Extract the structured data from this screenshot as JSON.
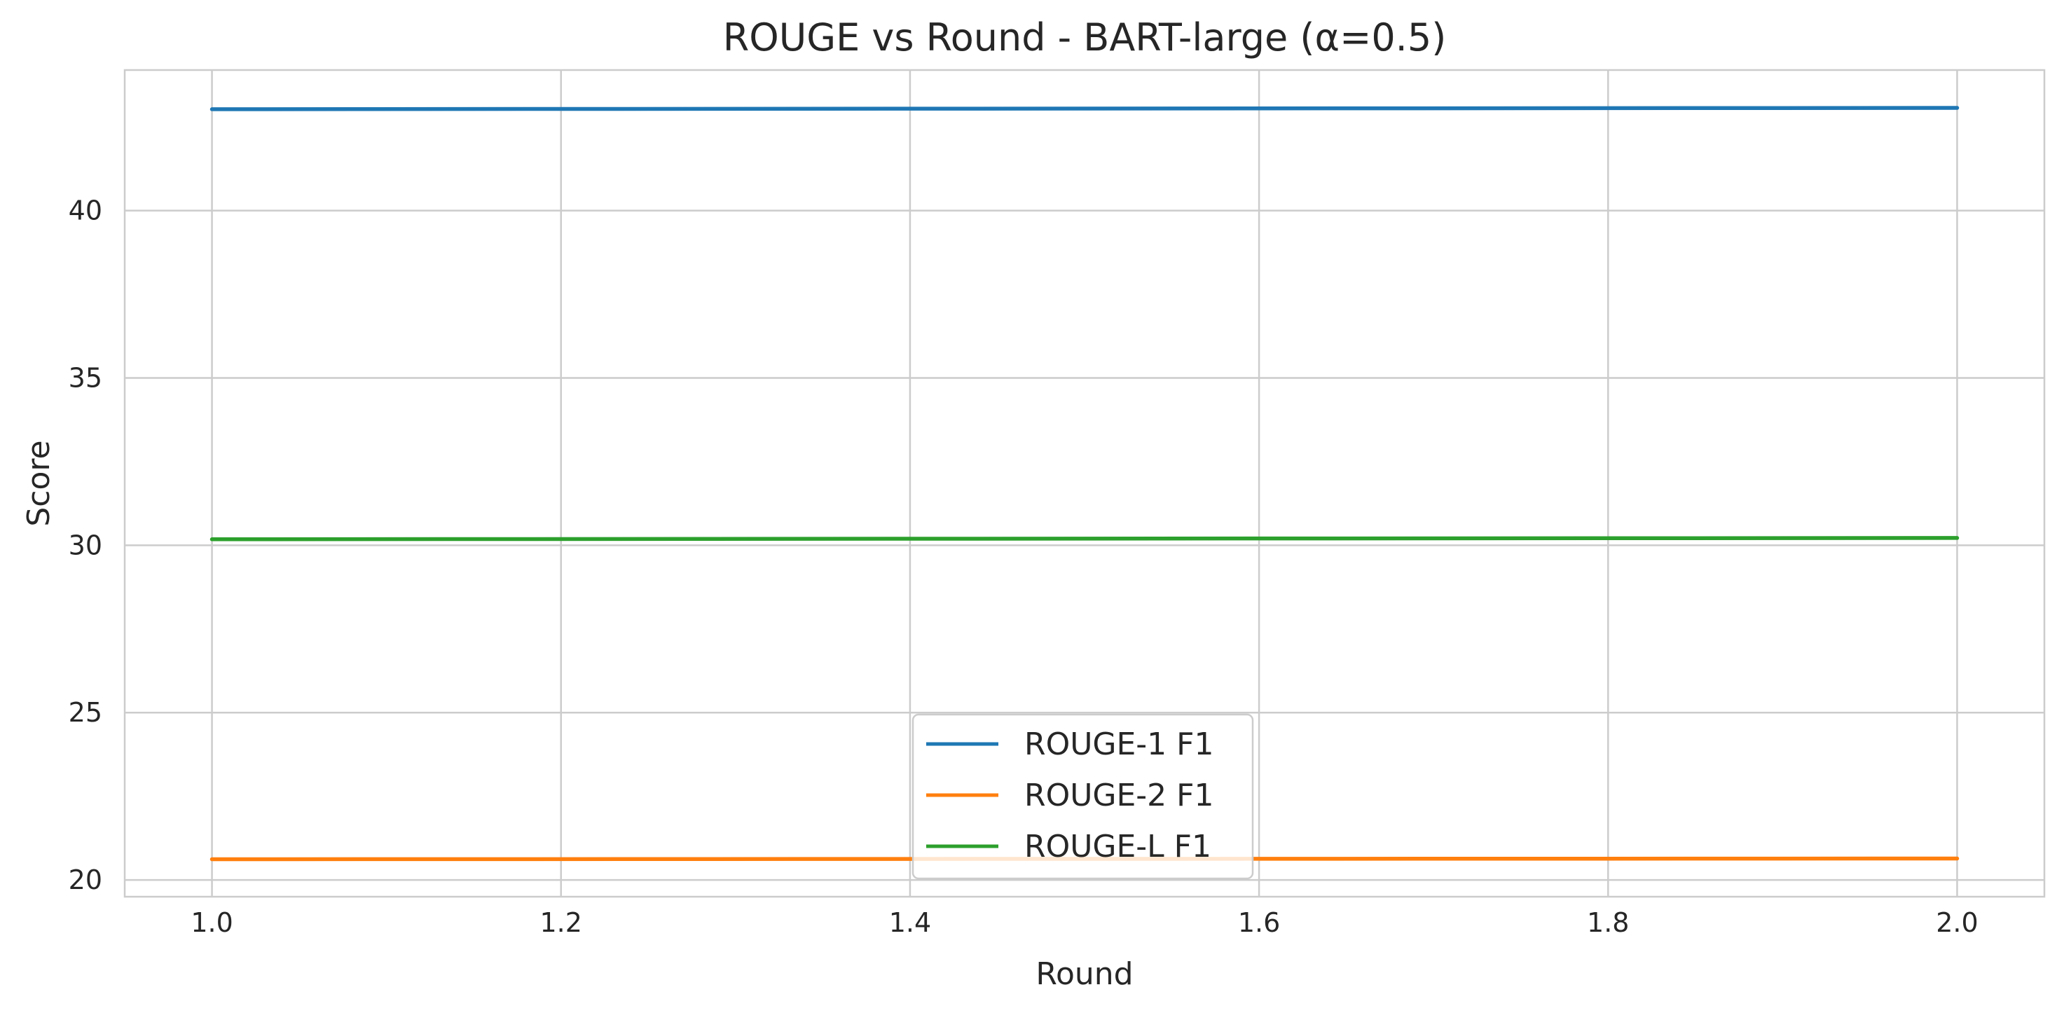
{
  "chart_data": {
    "type": "line",
    "title": "ROUGE vs Round - BART-large (α=0.5)",
    "xlabel": "Round",
    "ylabel": "Score",
    "xlim": [
      0.95,
      2.05
    ],
    "ylim": [
      19.5,
      44.2
    ],
    "xticks": [
      1.0,
      1.2,
      1.4,
      1.6,
      1.8,
      2.0
    ],
    "xtick_labels": [
      "1.0",
      "1.2",
      "1.4",
      "1.6",
      "1.8",
      "2.0"
    ],
    "yticks": [
      20,
      25,
      30,
      35,
      40
    ],
    "ytick_labels": [
      "20",
      "25",
      "30",
      "35",
      "40"
    ],
    "grid": true,
    "legend_position": "bottom-center",
    "x": [
      1.0,
      2.0
    ],
    "series": [
      {
        "name": "ROUGE-1 F1",
        "color": "#1f77b4",
        "values": [
          43.03,
          43.07
        ]
      },
      {
        "name": "ROUGE-2 F1",
        "color": "#ff7f0e",
        "values": [
          20.62,
          20.64
        ]
      },
      {
        "name": "ROUGE-L F1",
        "color": "#2ca02c",
        "values": [
          30.18,
          30.22
        ]
      }
    ]
  }
}
